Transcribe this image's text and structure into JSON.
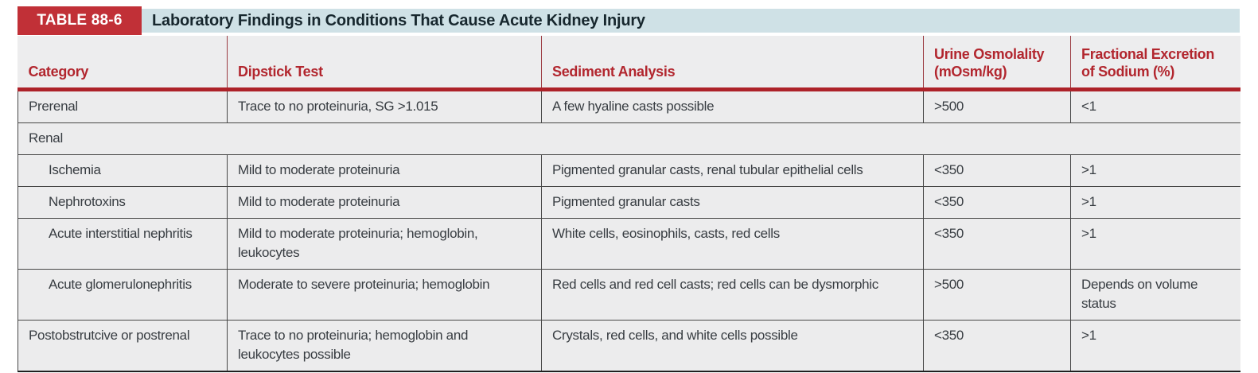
{
  "table": {
    "badge": "TABLE 88-6",
    "title": "Laboratory Findings in Conditions That Cause Acute Kidney Injury",
    "columns": [
      "Category",
      "Dipstick Test",
      "Sediment Analysis",
      "Urine Osmolality (mOsm/kg)",
      "Fractional Excretion of Sodium (%)"
    ],
    "rows": [
      {
        "type": "data",
        "indent": false,
        "category": "Prerenal",
        "dipstick": "Trace to no proteinuria, SG >1.015",
        "sediment": "A few hyaline casts possible",
        "osmolality": ">500",
        "fena": "<1"
      },
      {
        "type": "section",
        "category": "Renal"
      },
      {
        "type": "data",
        "indent": true,
        "category": "Ischemia",
        "dipstick": "Mild to moderate proteinuria",
        "sediment": "Pigmented granular casts, renal tubular epithelial cells",
        "osmolality": "<350",
        "fena": ">1"
      },
      {
        "type": "data",
        "indent": true,
        "category": "Nephrotoxins",
        "dipstick": "Mild to moderate proteinuria",
        "sediment": "Pigmented granular casts",
        "osmolality": "<350",
        "fena": ">1"
      },
      {
        "type": "data",
        "indent": true,
        "category": "Acute interstitial nephritis",
        "dipstick": "Mild to moderate proteinuria; hemoglobin, leukocytes",
        "sediment": "White cells, eosinophils, casts, red cells",
        "osmolality": "<350",
        "fena": ">1"
      },
      {
        "type": "data",
        "indent": true,
        "category": "Acute glomerulonephritis",
        "dipstick": "Moderate to severe proteinuria; hemoglobin",
        "sediment": "Red cells and red cell casts; red cells can be dysmorphic",
        "osmolality": ">500",
        "fena": "Depends on volume status"
      },
      {
        "type": "data",
        "indent": false,
        "category": "Postobstrutcive or postrenal",
        "dipstick": "Trace to no proteinuria; hemoglobin and leukocytes possible",
        "sediment": "Crystals, red cells, and white cells possible",
        "osmolality": "<350",
        "fena": ">1"
      }
    ]
  },
  "colors": {
    "badge_bg": "#c13037",
    "banner_bg": "#cfe1e6",
    "title_text": "#17272e",
    "header_bg": "#ededee",
    "header_text": "#b2262e",
    "rule": "#ad2229",
    "body_bg": "#ececed",
    "body_text": "#383d42",
    "line": "#474747"
  }
}
